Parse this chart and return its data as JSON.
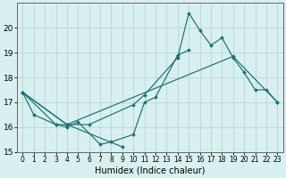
{
  "xlabel": "Humidex (Indice chaleur)",
  "bg_color": "#d8f0f0",
  "line_color": "#1a7070",
  "grid_color": "#b8d4d4",
  "xlim": [
    -0.5,
    23.5
  ],
  "ylim": [
    15,
    21
  ],
  "yticks": [
    15,
    16,
    17,
    18,
    19,
    20
  ],
  "xticks": [
    0,
    1,
    2,
    3,
    4,
    5,
    6,
    7,
    8,
    9,
    10,
    11,
    12,
    13,
    14,
    15,
    16,
    17,
    18,
    19,
    20,
    21,
    22,
    23
  ],
  "series": [
    {
      "x": [
        0,
        1,
        3,
        4,
        6,
        10,
        11,
        14,
        15,
        16,
        17,
        18,
        19,
        20,
        21,
        22,
        23
      ],
      "y": [
        17.4,
        16.5,
        16.1,
        16.1,
        16.1,
        16.9,
        17.3,
        18.8,
        20.6,
        19.9,
        19.3,
        19.6,
        18.8,
        18.2,
        17.5,
        17.5,
        17.0
      ]
    },
    {
      "x": [
        0,
        3,
        4,
        5,
        7,
        8,
        10,
        11,
        12,
        14,
        15
      ],
      "y": [
        17.4,
        16.1,
        16.0,
        16.2,
        15.3,
        15.4,
        15.7,
        17.0,
        17.2,
        18.9,
        19.1
      ]
    },
    {
      "x": [
        0,
        4,
        9
      ],
      "y": [
        17.4,
        16.1,
        15.2
      ]
    },
    {
      "x": [
        0,
        4,
        19,
        23
      ],
      "y": [
        17.4,
        16.1,
        18.85,
        17.0
      ]
    }
  ]
}
